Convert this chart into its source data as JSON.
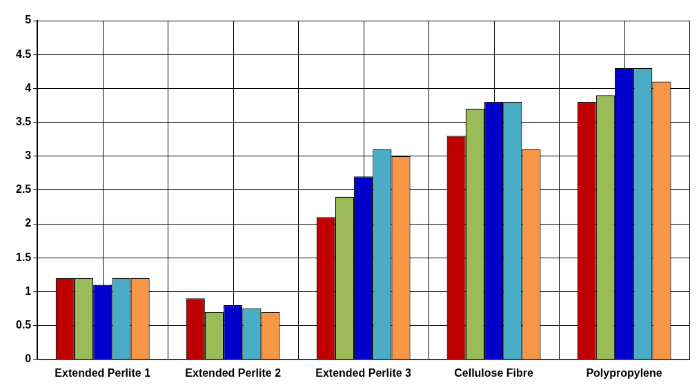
{
  "chart_data": {
    "type": "bar",
    "categories": [
      "Extended Perlite 1",
      "Extended Perlite 2",
      "Extended Perlite 3",
      "Cellulose Fibre",
      "Polypropylene"
    ],
    "series": [
      {
        "color": "#c00000",
        "values": [
          1.2,
          0.9,
          2.1,
          3.3,
          3.8
        ]
      },
      {
        "color": "#9bbb59",
        "values": [
          1.2,
          0.7,
          2.4,
          3.7,
          3.9
        ]
      },
      {
        "color": "#0000cc",
        "values": [
          1.1,
          0.8,
          2.7,
          3.8,
          4.3
        ]
      },
      {
        "color": "#4bacc6",
        "values": [
          1.2,
          0.75,
          3.1,
          3.8,
          4.3
        ]
      },
      {
        "color": "#f79646",
        "values": [
          1.2,
          0.7,
          3.0,
          3.1,
          4.1
        ]
      }
    ],
    "ylim": [
      0,
      5
    ],
    "yticks": [
      0,
      0.5,
      1,
      1.5,
      2,
      2.5,
      3,
      3.5,
      4,
      4.5,
      5
    ],
    "grid": true,
    "legend": false
  }
}
